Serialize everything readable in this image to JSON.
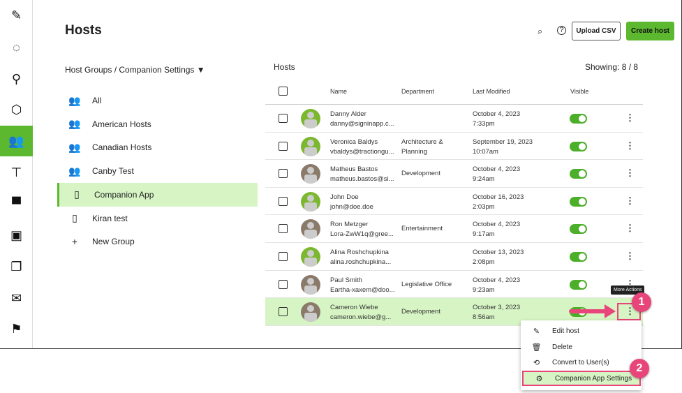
{
  "page": {
    "title": "Hosts",
    "upload_csv": "Upload CSV",
    "create_host": "Create host"
  },
  "sidebar": {
    "items": [
      {
        "icon": "pencil-icon",
        "glyph": "✎"
      },
      {
        "icon": "circle-icon",
        "glyph": "◌"
      },
      {
        "icon": "map-pin-icon",
        "glyph": "⚲"
      },
      {
        "icon": "package-icon",
        "glyph": "⬡"
      },
      {
        "icon": "hosts-icon",
        "glyph": "👥",
        "active": true
      },
      {
        "icon": "signpost-icon",
        "glyph": "⊤"
      },
      {
        "icon": "paint-roller-icon",
        "glyph": "▀"
      },
      {
        "icon": "id-card-icon",
        "glyph": "▣"
      },
      {
        "icon": "documents-icon",
        "glyph": "❐"
      },
      {
        "icon": "mail-icon",
        "glyph": "✉"
      },
      {
        "icon": "flag-icon",
        "glyph": "⚑"
      }
    ]
  },
  "groups": {
    "title": "Host Groups / Companion Settings",
    "items": [
      {
        "label": "All",
        "icon": "people-icon",
        "glyph": "👥"
      },
      {
        "label": "American Hosts",
        "icon": "people-icon",
        "glyph": "👥"
      },
      {
        "label": "Canadian Hosts",
        "icon": "people-icon",
        "glyph": "👥"
      },
      {
        "label": "Canby Test",
        "icon": "people-icon",
        "glyph": "👥"
      },
      {
        "label": "Companion App",
        "icon": "phone-icon",
        "glyph": "▯",
        "active": true
      },
      {
        "label": "Kiran test",
        "icon": "phone-icon",
        "glyph": "▯"
      },
      {
        "label": "New Group",
        "icon": "plus-icon",
        "glyph": "+"
      }
    ]
  },
  "table": {
    "title": "Hosts",
    "showing": "Showing: 8 / 8",
    "headers": {
      "name": "Name",
      "department": "Department",
      "modified": "Last Modified",
      "visible": "Visible"
    },
    "rows": [
      {
        "name": "Danny Alder",
        "email": "danny@signinapp.c...",
        "dept": "",
        "date": "October 4, 2023",
        "time": "7:33pm",
        "photo": false,
        "visible": true
      },
      {
        "name": "Veronica Baldys",
        "email": "vbaldys@tractiongu...",
        "dept": "Architecture &",
        "dept2": "Planning",
        "date": "September 19, 2023",
        "time": "10:07am",
        "photo": false,
        "visible": true
      },
      {
        "name": "Matheus Bastos",
        "email": "matheus.bastos@si...",
        "dept": "Development",
        "date": "October 4, 2023",
        "time": "9:24am",
        "photo": true,
        "visible": true
      },
      {
        "name": "John Doe",
        "email": "john@doe.doe",
        "dept": "",
        "date": "October 16, 2023",
        "time": "2:03pm",
        "photo": false,
        "visible": true
      },
      {
        "name": "Ron Metzger",
        "email": "Lora-ZwW1q@gree...",
        "dept": "Entertainment",
        "date": "October 4, 2023",
        "time": "9:17am",
        "photo": true,
        "visible": true
      },
      {
        "name": "Alina Roshchupkina",
        "email": "alina.roshchupkina...",
        "dept": "",
        "date": "October 13, 2023",
        "time": "2:08pm",
        "photo": false,
        "visible": true
      },
      {
        "name": "Paul Smith",
        "email": "Eartha-xaxem@doo...",
        "dept": "Legislative Office",
        "date": "October 4, 2023",
        "time": "9:23am",
        "photo": true,
        "visible": true
      },
      {
        "name": "Cameron Wiebe",
        "email": "cameron.wiebe@g...",
        "dept": "Development",
        "date": "October 3, 2023",
        "time": "8:56am",
        "photo": true,
        "visible": true,
        "selected": true
      }
    ]
  },
  "tooltip": "More Actions",
  "menu": [
    {
      "label": "Edit host",
      "glyph": "✎"
    },
    {
      "label": "Delete",
      "glyph": "🗑"
    },
    {
      "label": "Convert to User(s)",
      "glyph": "⟲"
    },
    {
      "label": "Companion App Settings",
      "glyph": "⚙"
    }
  ],
  "badges": [
    "1",
    "2"
  ],
  "colors": {
    "accent": "#5cb82f",
    "selected": "#d7f5c4",
    "annotation": "#e8457a"
  }
}
